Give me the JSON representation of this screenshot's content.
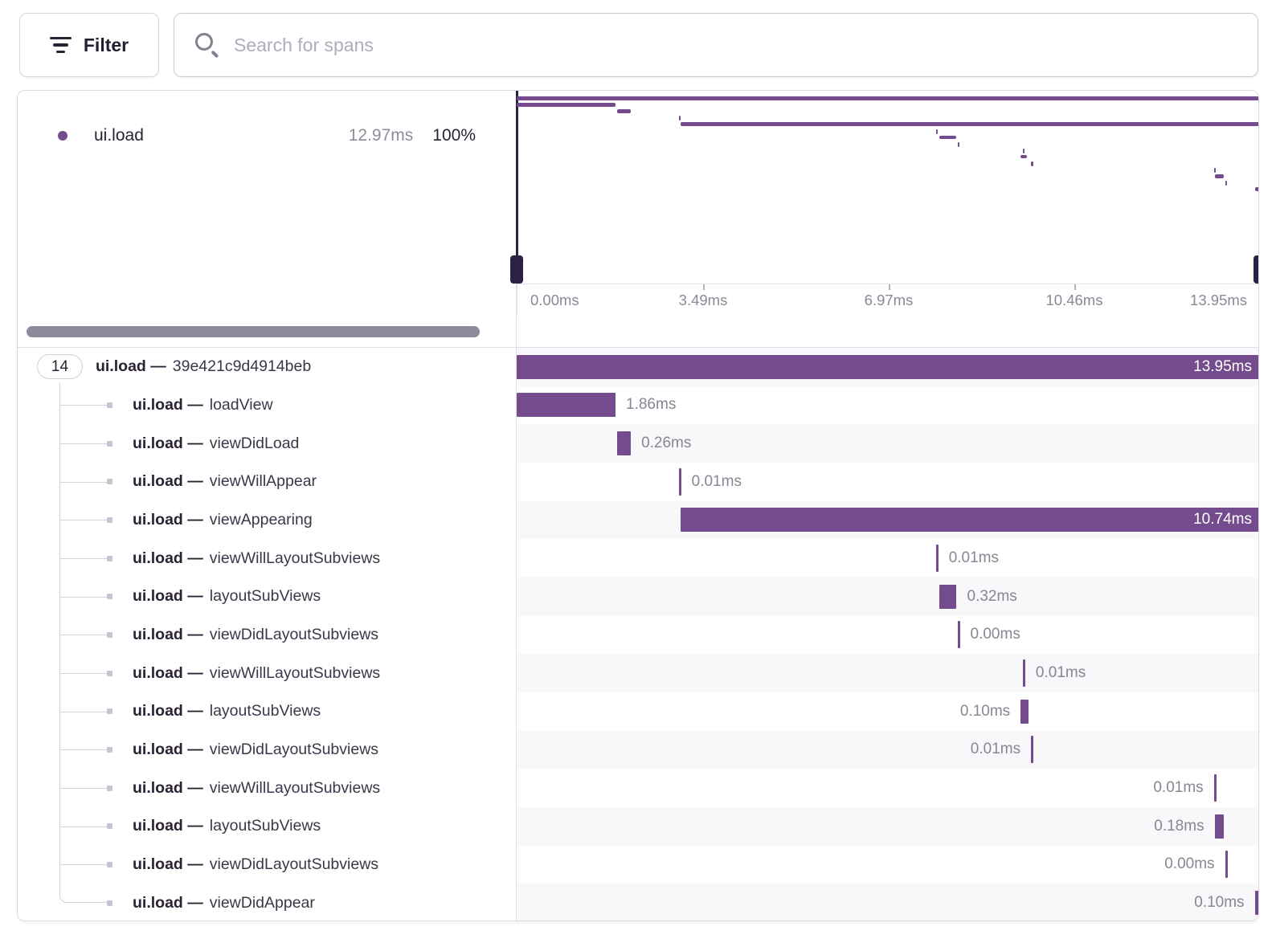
{
  "toolbar": {
    "filter_label": "Filter",
    "search_placeholder": "Search for spans"
  },
  "legend": {
    "op": "ui.load",
    "duration": "12.97ms",
    "percent": "100%"
  },
  "tree": {
    "root_child_count": "14",
    "separator": "—"
  },
  "colors": {
    "span_purple": "#744C8E",
    "handle_dark": "#2B2140",
    "row_stripe": "#F8F7FA",
    "text_dark": "#2B2233",
    "text_muted": "#8B8494"
  },
  "chart_data": {
    "type": "waterfall",
    "unit": "ms",
    "axis_range_ms": [
      0,
      13.95
    ],
    "axis_ticks": [
      "0.00ms",
      "3.49ms",
      "6.97ms",
      "10.46ms",
      "13.95ms"
    ],
    "root_total_ms": 13.95,
    "legend_entry": {
      "op": "ui.load",
      "duration_ms": 12.97,
      "percent": 100
    },
    "spans": [
      {
        "op": "ui.load",
        "name": "39e421c9d4914beb",
        "duration_ms": 13.95,
        "duration_label": "13.95ms",
        "start_pct": 0,
        "width_pct": 100,
        "tick": false,
        "label_placement": "inside",
        "root": true
      },
      {
        "op": "ui.load",
        "name": "loadView",
        "duration_ms": 1.86,
        "duration_label": "1.86ms",
        "start_pct": 0,
        "width_pct": 13.3,
        "tick": false,
        "label_placement": "right"
      },
      {
        "op": "ui.load",
        "name": "viewDidLoad",
        "duration_ms": 0.26,
        "duration_label": "0.26ms",
        "start_pct": 13.5,
        "width_pct": 1.86,
        "tick": false,
        "label_placement": "right"
      },
      {
        "op": "ui.load",
        "name": "viewWillAppear",
        "duration_ms": 0.01,
        "duration_label": "0.01ms",
        "start_pct": 21.8,
        "width_pct": 0.07,
        "tick": true,
        "label_placement": "right"
      },
      {
        "op": "ui.load",
        "name": "viewAppearing",
        "duration_ms": 10.74,
        "duration_label": "10.74ms",
        "start_pct": 22.1,
        "width_pct": 77.9,
        "tick": false,
        "label_placement": "inside"
      },
      {
        "op": "ui.load",
        "name": "viewWillLayoutSubviews",
        "duration_ms": 0.01,
        "duration_label": "0.01ms",
        "start_pct": 56.4,
        "width_pct": 0.07,
        "tick": true,
        "label_placement": "right"
      },
      {
        "op": "ui.load",
        "name": "layoutSubViews",
        "duration_ms": 0.32,
        "duration_label": "0.32ms",
        "start_pct": 56.9,
        "width_pct": 2.29,
        "tick": false,
        "label_placement": "right"
      },
      {
        "op": "ui.load",
        "name": "viewDidLayoutSubviews",
        "duration_ms": 0.0,
        "duration_label": "0.00ms",
        "start_pct": 59.3,
        "width_pct": 0.05,
        "tick": true,
        "label_placement": "right"
      },
      {
        "op": "ui.load",
        "name": "viewWillLayoutSubviews",
        "duration_ms": 0.01,
        "duration_label": "0.01ms",
        "start_pct": 68.1,
        "width_pct": 0.07,
        "tick": true,
        "label_placement": "right"
      },
      {
        "op": "ui.load",
        "name": "layoutSubViews",
        "duration_ms": 0.1,
        "duration_label": "0.10ms",
        "start_pct": 67.8,
        "width_pct": 0.9,
        "tick": false,
        "label_placement": "left"
      },
      {
        "op": "ui.load",
        "name": "viewDidLayoutSubviews",
        "duration_ms": 0.01,
        "duration_label": "0.01ms",
        "start_pct": 69.2,
        "width_pct": 0.07,
        "tick": true,
        "label_placement": "left"
      },
      {
        "op": "ui.load",
        "name": "viewWillLayoutSubviews",
        "duration_ms": 0.01,
        "duration_label": "0.01ms",
        "start_pct": 93.8,
        "width_pct": 0.07,
        "tick": true,
        "label_placement": "left"
      },
      {
        "op": "ui.load",
        "name": "layoutSubViews",
        "duration_ms": 0.18,
        "duration_label": "0.18ms",
        "start_pct": 93.9,
        "width_pct": 1.29,
        "tick": false,
        "label_placement": "left"
      },
      {
        "op": "ui.load",
        "name": "viewDidLayoutSubviews",
        "duration_ms": 0.0,
        "duration_label": "0.00ms",
        "start_pct": 95.3,
        "width_pct": 0.05,
        "tick": true,
        "label_placement": "left"
      },
      {
        "op": "ui.load",
        "name": "viewDidAppear",
        "duration_ms": 0.1,
        "duration_label": "0.10ms",
        "start_pct": 99.3,
        "width_pct": 0.7,
        "tick": false,
        "label_placement": "left"
      }
    ]
  }
}
